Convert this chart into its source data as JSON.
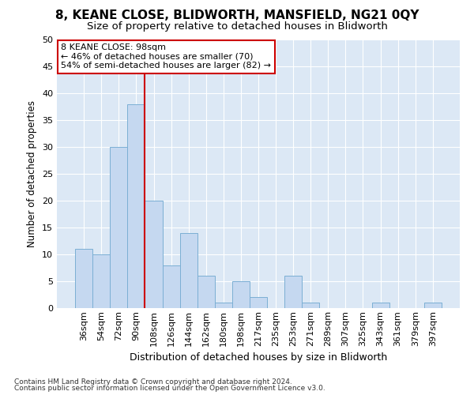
{
  "title": "8, KEANE CLOSE, BLIDWORTH, MANSFIELD, NG21 0QY",
  "subtitle": "Size of property relative to detached houses in Blidworth",
  "xlabel": "Distribution of detached houses by size in Blidworth",
  "ylabel": "Number of detached properties",
  "categories": [
    "36sqm",
    "54sqm",
    "72sqm",
    "90sqm",
    "108sqm",
    "126sqm",
    "144sqm",
    "162sqm",
    "180sqm",
    "198sqm",
    "217sqm",
    "235sqm",
    "253sqm",
    "271sqm",
    "289sqm",
    "307sqm",
    "325sqm",
    "343sqm",
    "361sqm",
    "379sqm",
    "397sqm"
  ],
  "values": [
    11,
    10,
    30,
    38,
    20,
    8,
    14,
    6,
    1,
    5,
    2,
    0,
    6,
    1,
    0,
    0,
    0,
    1,
    0,
    0,
    1
  ],
  "bar_color": "#c5d8f0",
  "bar_edge_color": "#7bafd4",
  "bg_color": "#dce8f5",
  "grid_color": "#ffffff",
  "annotation_box_color": "#ffffff",
  "annotation_box_edge": "#cc0000",
  "vline_color": "#cc0000",
  "vline_position": 3.5,
  "annotation_text_line1": "8 KEANE CLOSE: 98sqm",
  "annotation_text_line2": "← 46% of detached houses are smaller (70)",
  "annotation_text_line3": "54% of semi-detached houses are larger (82) →",
  "footer_line1": "Contains HM Land Registry data © Crown copyright and database right 2024.",
  "footer_line2": "Contains public sector information licensed under the Open Government Licence v3.0.",
  "ylim": [
    0,
    50
  ],
  "yticks": [
    0,
    5,
    10,
    15,
    20,
    25,
    30,
    35,
    40,
    45,
    50
  ],
  "title_fontsize": 11,
  "subtitle_fontsize": 9.5,
  "xlabel_fontsize": 9,
  "ylabel_fontsize": 8.5,
  "tick_fontsize": 8,
  "annotation_fontsize": 8,
  "footer_fontsize": 6.5
}
